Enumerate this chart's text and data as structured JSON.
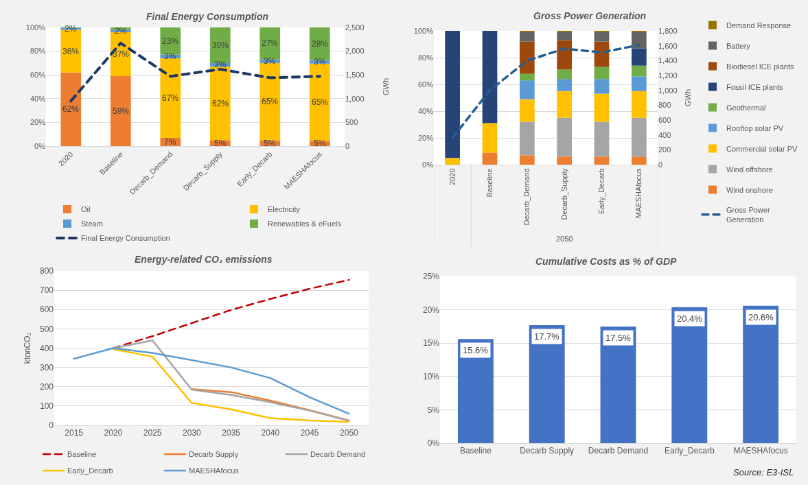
{
  "chart_data": [
    {
      "type": "bar",
      "title": "Final Energy Consumption",
      "categories": [
        "2020",
        "Baseline",
        "Decarb_Demand",
        "Decarb_Supply",
        "Early_Decarb",
        "MAESHAfocus"
      ],
      "stacked": true,
      "series": [
        {
          "name": "Oil",
          "color": "#ed7d31",
          "values": [
            62,
            59,
            7,
            5,
            5,
            4.5
          ],
          "value_labels": [
            "62%",
            "59%",
            "7%",
            "5%",
            "5%",
            "5%"
          ]
        },
        {
          "name": "Electricity",
          "color": "#ffc000",
          "values": [
            36,
            37,
            67,
            62,
            65,
            65
          ],
          "value_labels": [
            "36%",
            "37%",
            "67%",
            "62%",
            "65%",
            "65%"
          ]
        },
        {
          "name": "Steam",
          "color": "#5b9bd5",
          "values": [
            1.5,
            2,
            3,
            3,
            3,
            3
          ],
          "value_labels": [
            "2%",
            "2%",
            "3%",
            "3%",
            "3%",
            "3%"
          ]
        },
        {
          "name": "Renewables & eFuels",
          "color": "#70ad47",
          "values": [
            0.5,
            2,
            23,
            30,
            27,
            27.5
          ],
          "value_labels": [
            null,
            null,
            "23%",
            "30%",
            "27%",
            "28%"
          ]
        },
        {
          "name": "Final Energy Consumption",
          "type": "line",
          "axis": "y2",
          "color": "#1f3864",
          "line_style": "dashed",
          "values": [
            950,
            2170,
            1470,
            1620,
            1440,
            1470
          ]
        }
      ],
      "ylim": [
        0,
        100
      ],
      "yticks": [
        {
          "value": 0,
          "label": "0%"
        },
        {
          "value": 20,
          "label": "20%"
        },
        {
          "value": 40,
          "label": "40%"
        },
        {
          "value": 60,
          "label": "60%"
        },
        {
          "value": 80,
          "label": "80%"
        },
        {
          "value": 100,
          "label": "100%"
        }
      ],
      "y2lim": [
        0,
        2500
      ],
      "y2ticks": [
        0,
        500,
        {
          "value": 1000,
          "label": "1,000"
        },
        {
          "value": 1500,
          "label": "1,500"
        },
        {
          "value": 2000,
          "label": "2,000"
        },
        {
          "value": 2500,
          "label": "2,500"
        }
      ],
      "y2label": "GWh",
      "grid": "y",
      "legend": "bottom"
    },
    {
      "type": "bar",
      "title": "Gross Power Generation",
      "categories": [
        "2020",
        "Baseline",
        "Decarb_Demand",
        "Decarb_Supply",
        "Early_Decarb",
        "MAESHAfocus"
      ],
      "stacked": true,
      "series": [
        {
          "name": "Wind onshore",
          "color": "#ed7d31",
          "values": [
            null,
            9,
            7,
            6,
            6,
            6
          ]
        },
        {
          "name": "Wind offshore",
          "color": "#a5a5a5",
          "values": [
            null,
            null,
            25,
            29,
            26,
            29
          ]
        },
        {
          "name": "Commercial solar PV",
          "color": "#ffc000",
          "values": [
            5,
            22,
            17,
            20,
            21,
            20
          ]
        },
        {
          "name": "Rooftop solar PV",
          "color": "#5b9bd5",
          "values": [
            null,
            null,
            14,
            9,
            11,
            11
          ]
        },
        {
          "name": "Geothermal",
          "color": "#70ad47",
          "values": [
            null,
            null,
            5,
            7,
            9,
            8
          ]
        },
        {
          "name": "Fossil ICE plants",
          "color": "#264478",
          "values": [
            95,
            69,
            null,
            null,
            null,
            13
          ]
        },
        {
          "name": "Biodiesel ICE plants",
          "color": "#9e480e",
          "values": [
            null,
            null,
            24,
            22,
            19,
            null
          ]
        },
        {
          "name": "Battery",
          "color": "#636363",
          "values": [
            null,
            null,
            7,
            6,
            7,
            12
          ]
        },
        {
          "name": "Demand Response",
          "color": "#997300",
          "values": [
            null,
            null,
            1,
            1,
            1,
            1
          ]
        },
        {
          "name": "Gross Power Generation",
          "type": "line",
          "axis": "y2",
          "color": "#255e91",
          "line_style": "dashed",
          "values": [
            360,
            1000,
            1400,
            1560,
            1510,
            1610
          ]
        }
      ],
      "ylim": [
        0,
        100
      ],
      "yticks": [
        {
          "value": 0,
          "label": "0%"
        },
        {
          "value": 20,
          "label": "20%"
        },
        {
          "value": 40,
          "label": "40%"
        },
        {
          "value": 60,
          "label": "60%"
        },
        {
          "value": 80,
          "label": "80%"
        },
        {
          "value": 100,
          "label": "100%"
        }
      ],
      "y2lim": [
        0,
        1800
      ],
      "y2ticks": [
        0,
        200,
        400,
        600,
        800,
        {
          "value": 1000,
          "label": "1,000"
        },
        {
          "value": 1200,
          "label": "1,200"
        },
        {
          "value": 1400,
          "label": "1,400"
        },
        {
          "value": 1600,
          "label": "1,600"
        },
        {
          "value": 1800,
          "label": "1,800"
        }
      ],
      "y2label": "GWh",
      "grid": "y",
      "legend": "right",
      "annotations": [
        "2050"
      ]
    },
    {
      "type": "line",
      "title": "Energy-related CO₂ emissions",
      "categories": [
        "2015",
        "2020",
        "2025",
        "2030",
        "2035",
        "2040",
        "2045",
        "2050"
      ],
      "ylabel": "ktonCO₂",
      "series": [
        {
          "name": "Baseline",
          "color": "#c00000",
          "line_style": "dashed",
          "values": [
            null,
            400,
            462,
            530,
            598,
            655,
            708,
            754
          ]
        },
        {
          "name": "Decarb Supply",
          "color": "#ed7d31",
          "values": [
            null,
            null,
            null,
            188,
            172,
            128,
            78,
            25
          ]
        },
        {
          "name": "Decarb Demand",
          "color": "#a5a5a5",
          "values": [
            null,
            400,
            440,
            185,
            157,
            120,
            76,
            24
          ]
        },
        {
          "name": "Early_Decarb",
          "color": "#ffc000",
          "values": [
            null,
            395,
            356,
            116,
            83,
            37,
            25,
            18
          ]
        },
        {
          "name": "MAESHAfocus",
          "color": "#5b9bd5",
          "values": [
            345,
            400,
            375,
            338,
            300,
            245,
            145,
            60
          ]
        }
      ],
      "ylim": [
        0,
        800
      ],
      "yticks": [
        0,
        100,
        200,
        300,
        400,
        500,
        600,
        700,
        800
      ],
      "grid": "y",
      "legend": "bottom"
    },
    {
      "type": "bar",
      "title": "Cumulative Costs as % of GDP",
      "categories": [
        "Baseline",
        "Decarb Supply",
        "Decarb Demand",
        "Early_Decarb",
        "MAESHAfocus"
      ],
      "values": [
        15.6,
        17.7,
        17.5,
        20.4,
        20.6
      ],
      "value_labels": [
        "15.6%",
        "17.7%",
        "17.5%",
        "20.4%",
        "20.6%"
      ],
      "color": "#4472c4",
      "ylim": [
        0,
        25
      ],
      "yticks": [
        {
          "value": 0,
          "label": "0%"
        },
        {
          "value": 5,
          "label": "5%"
        },
        {
          "value": 10,
          "label": "10%"
        },
        {
          "value": 15,
          "label": "15%"
        },
        {
          "value": 20,
          "label": "20%"
        },
        {
          "value": 25,
          "label": "25%"
        }
      ],
      "grid": "y",
      "annotations": [
        "Source: E3-ISL"
      ]
    }
  ]
}
